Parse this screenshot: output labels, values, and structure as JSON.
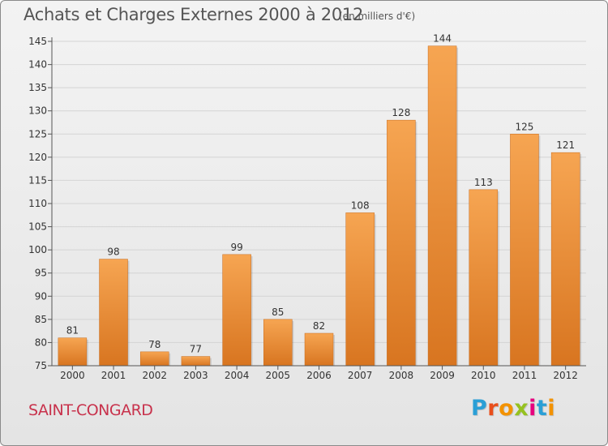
{
  "header": {
    "title": "Achats et Charges Externes 2000 à 2012",
    "unit": "(en milliers d'€)"
  },
  "footer": {
    "commune": "SAINT-CONGARD",
    "logo_text": "Proxiti",
    "logo_colors": [
      "#2a9fd6",
      "#e94e1b",
      "#f39200",
      "#95c11f",
      "#e6007e",
      "#2a9fd6",
      "#f39200"
    ]
  },
  "colors": {
    "bar_top": "#f6a552",
    "bar_bottom": "#d87520",
    "axis_text": "#333333",
    "title": "#555555",
    "commune": "#c8324c"
  },
  "chart_data": {
    "type": "bar",
    "title": "Achats et Charges Externes 2000 à 2012",
    "subtitle": "(en milliers d'€)",
    "xlabel": "",
    "ylabel": "",
    "categories": [
      "2000",
      "2001",
      "2002",
      "2003",
      "2004",
      "2005",
      "2006",
      "2007",
      "2008",
      "2009",
      "2010",
      "2011",
      "2012"
    ],
    "values": [
      81,
      98,
      78,
      77,
      99,
      85,
      82,
      108,
      128,
      144,
      113,
      125,
      121
    ],
    "ylim": [
      75,
      145
    ],
    "yticks": [
      75,
      80,
      85,
      90,
      95,
      100,
      105,
      110,
      115,
      120,
      125,
      130,
      135,
      140,
      145
    ],
    "grid": true,
    "data_labels": true
  }
}
